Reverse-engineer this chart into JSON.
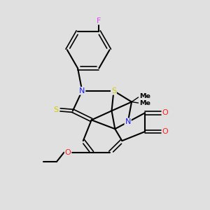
{
  "bg_color": "#e0e0e0",
  "bond_color": "#000000",
  "atom_colors": {
    "F": "#e040fb",
    "N": "#1a1aff",
    "S": "#cccc00",
    "O": "#ff2020",
    "C": "#000000"
  },
  "figsize": [
    3.0,
    3.0
  ],
  "dpi": 100
}
